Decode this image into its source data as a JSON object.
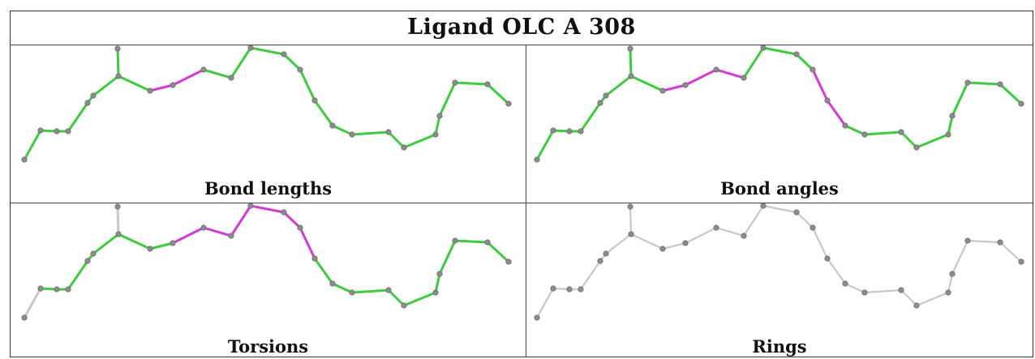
{
  "title": "Ligand OLC A 308",
  "colors": {
    "ok_bond": "#3dcc3d",
    "flagged_bond": "#d63ad6",
    "neutral_bond": "#c8c8c8",
    "atom": "#8c8c8c"
  },
  "panels": [
    {
      "label": "Bond lengths",
      "highlight": [
        8,
        9
      ]
    },
    {
      "label": "Bond angles",
      "highlight": [
        8,
        9,
        10,
        14,
        15
      ]
    },
    {
      "label": "Torsions",
      "highlight": [
        0,
        9,
        10,
        11,
        12,
        13,
        14,
        26
      ]
    },
    {
      "label": "Rings",
      "highlight": "none"
    }
  ]
}
